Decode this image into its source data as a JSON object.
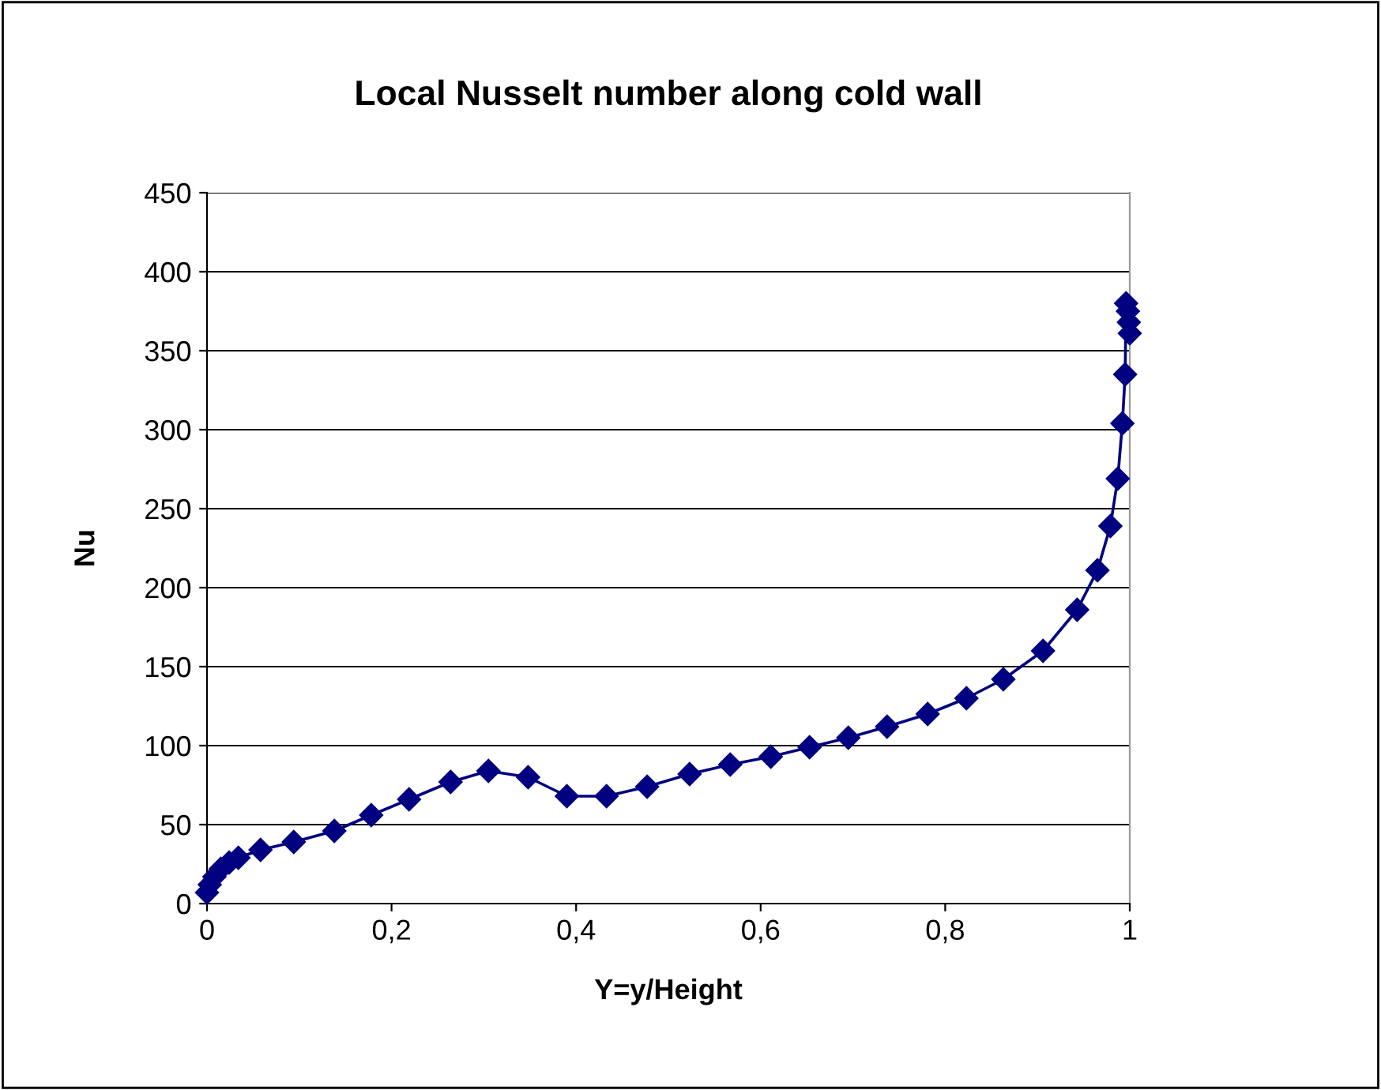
{
  "chart_data": {
    "type": "line",
    "title": "Local Nusselt number along cold wall",
    "xlabel": "Y=y/Height",
    "ylabel": "Nu",
    "series": [
      {
        "color": "#000080",
        "x": [
          0,
          0.003,
          0.008,
          0.015,
          0.024,
          0.034,
          0.058,
          0.094,
          0.138,
          0.178,
          0.219,
          0.264,
          0.305,
          0.348,
          0.39,
          0.433,
          0.477,
          0.523,
          0.567,
          0.611,
          0.653,
          0.695,
          0.737,
          0.781,
          0.823,
          0.863,
          0.906,
          0.943,
          0.965,
          0.979,
          0.987,
          0.992,
          0.995,
          0.996,
          0.998,
          0.999,
          1.0
        ],
        "values": [
          7,
          12,
          17,
          22,
          26,
          29,
          34,
          39,
          46,
          56,
          66,
          77,
          84,
          80,
          68,
          68,
          74,
          82,
          88,
          93,
          99,
          105,
          112,
          120,
          130,
          142,
          160,
          186,
          211,
          239,
          269,
          304,
          335,
          380,
          375,
          368,
          361
        ]
      }
    ],
    "xlim": [
      0,
      1
    ],
    "xticks": [
      0,
      {
        "value": 0.2,
        "label": "0,2"
      },
      {
        "value": 0.4,
        "label": "0,4"
      },
      {
        "value": 0.6,
        "label": "0,6"
      },
      {
        "value": 0.8,
        "label": "0,8"
      },
      1
    ],
    "ylim": [
      0,
      450
    ],
    "yticks": [
      0,
      50,
      100,
      150,
      200,
      250,
      300,
      350,
      400,
      450
    ],
    "grid": "y",
    "marker": "diamond",
    "line_style": "solid",
    "legend": false
  }
}
